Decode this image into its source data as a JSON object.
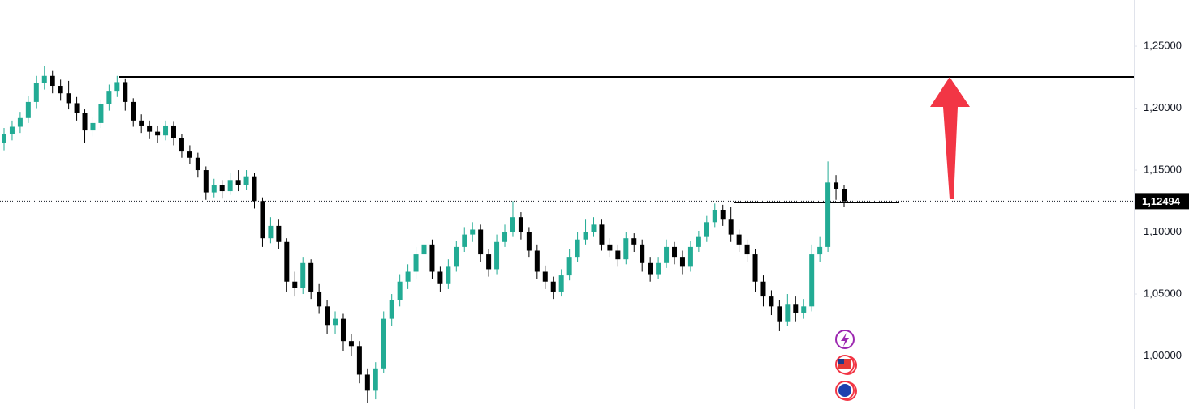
{
  "chart_data": {
    "type": "candlestick",
    "ylim": [
      0.9572,
      1.2873
    ],
    "yticks": [
      {
        "value": 1.0,
        "label": "1,00000"
      },
      {
        "value": 1.05,
        "label": "1,05000"
      },
      {
        "value": 1.1,
        "label": "1,10000"
      },
      {
        "value": 1.15,
        "label": "1,15000"
      },
      {
        "value": 1.2,
        "label": "1,20000"
      },
      {
        "value": 1.25,
        "label": "1,25000"
      }
    ],
    "last_price": {
      "value": 1.12494,
      "label": "1,12494"
    },
    "levels": [
      1.2252,
      1.1239
    ],
    "up_color": "#22ab94",
    "down_color": "#000000",
    "open": [
      1.172,
      1.179,
      1.185,
      1.192,
      1.205,
      1.22,
      1.226,
      1.218,
      1.212,
      1.204,
      1.196,
      1.182,
      1.188,
      1.203,
      1.214,
      1.221,
      1.205,
      1.19,
      1.186,
      1.181,
      1.178,
      1.186,
      1.176,
      1.165,
      1.16,
      1.15,
      1.132,
      1.138,
      1.133,
      1.142,
      1.138,
      1.145,
      1.125,
      1.095,
      1.105,
      1.092,
      1.06,
      1.055,
      1.075,
      1.052,
      1.04,
      1.025,
      1.03,
      1.012,
      1.008,
      0.985,
      0.972,
      0.99,
      1.03,
      1.045,
      1.06,
      1.068,
      1.082,
      1.09,
      1.068,
      1.058,
      1.072,
      1.088,
      1.098,
      1.102,
      1.082,
      1.07,
      1.092,
      1.1,
      1.112,
      1.1,
      1.085,
      1.068,
      1.06,
      1.052,
      1.065,
      1.08,
      1.094,
      1.1,
      1.106,
      1.09,
      1.085,
      1.078,
      1.095,
      1.09,
      1.075,
      1.066,
      1.075,
      1.088,
      1.08,
      1.072,
      1.088,
      1.096,
      1.108,
      1.118,
      1.11,
      1.098,
      1.09,
      1.082,
      1.06,
      1.048,
      1.04,
      1.028,
      1.042,
      1.035,
      1.04,
      1.082,
      1.088,
      1.14,
      1.135
    ],
    "high": [
      1.184,
      1.19,
      1.197,
      1.21,
      1.226,
      1.234,
      1.23,
      1.223,
      1.222,
      1.209,
      1.199,
      1.193,
      1.207,
      1.219,
      1.226,
      1.224,
      1.208,
      1.195,
      1.19,
      1.186,
      1.19,
      1.189,
      1.179,
      1.17,
      1.164,
      1.153,
      1.143,
      1.142,
      1.148,
      1.15,
      1.15,
      1.148,
      1.128,
      1.112,
      1.11,
      1.095,
      1.068,
      1.08,
      1.078,
      1.058,
      1.045,
      1.036,
      1.034,
      1.018,
      1.012,
      0.99,
      0.995,
      1.036,
      1.05,
      1.066,
      1.074,
      1.088,
      1.101,
      1.094,
      1.072,
      1.078,
      1.093,
      1.104,
      1.108,
      1.106,
      1.086,
      1.098,
      1.106,
      1.125,
      1.116,
      1.104,
      1.09,
      1.073,
      1.064,
      1.07,
      1.086,
      1.1,
      1.11,
      1.112,
      1.11,
      1.095,
      1.09,
      1.1,
      1.099,
      1.094,
      1.08,
      1.08,
      1.094,
      1.092,
      1.085,
      1.093,
      1.101,
      1.113,
      1.123,
      1.122,
      1.12,
      1.102,
      1.094,
      1.086,
      1.065,
      1.053,
      1.045,
      1.05,
      1.048,
      1.046,
      1.09,
      1.096,
      1.157,
      1.146,
      1.138
    ],
    "low": [
      1.166,
      1.174,
      1.18,
      1.188,
      1.2,
      1.215,
      1.212,
      1.206,
      1.199,
      1.19,
      1.172,
      1.177,
      1.184,
      1.198,
      1.209,
      1.198,
      1.185,
      1.18,
      1.175,
      1.172,
      1.174,
      1.17,
      1.16,
      1.155,
      1.144,
      1.126,
      1.128,
      1.127,
      1.13,
      1.133,
      1.134,
      1.119,
      1.088,
      1.091,
      1.086,
      1.052,
      1.048,
      1.05,
      1.046,
      1.034,
      1.018,
      1.018,
      1.004,
      1.0,
      0.978,
      0.962,
      0.965,
      0.986,
      1.024,
      1.04,
      1.054,
      1.062,
      1.076,
      1.062,
      1.052,
      1.054,
      1.068,
      1.084,
      1.092,
      1.076,
      1.064,
      1.066,
      1.088,
      1.096,
      1.094,
      1.08,
      1.062,
      1.054,
      1.046,
      1.048,
      1.061,
      1.076,
      1.09,
      1.096,
      1.085,
      1.08,
      1.072,
      1.074,
      1.084,
      1.068,
      1.06,
      1.062,
      1.071,
      1.074,
      1.066,
      1.068,
      1.084,
      1.092,
      1.104,
      1.105,
      1.092,
      1.084,
      1.076,
      1.052,
      1.04,
      1.033,
      1.02,
      1.024,
      1.028,
      1.03,
      1.036,
      1.076,
      1.084,
      1.126,
      1.12
    ],
    "close": [
      1.179,
      1.185,
      1.192,
      1.205,
      1.22,
      1.226,
      1.218,
      1.212,
      1.204,
      1.196,
      1.182,
      1.188,
      1.203,
      1.214,
      1.221,
      1.205,
      1.19,
      1.186,
      1.181,
      1.178,
      1.186,
      1.176,
      1.165,
      1.16,
      1.15,
      1.132,
      1.138,
      1.133,
      1.142,
      1.138,
      1.145,
      1.125,
      1.095,
      1.105,
      1.092,
      1.06,
      1.055,
      1.075,
      1.052,
      1.04,
      1.025,
      1.03,
      1.012,
      1.008,
      0.985,
      0.972,
      0.99,
      1.03,
      1.045,
      1.06,
      1.068,
      1.082,
      1.09,
      1.068,
      1.058,
      1.072,
      1.088,
      1.098,
      1.102,
      1.082,
      1.07,
      1.092,
      1.1,
      1.112,
      1.1,
      1.085,
      1.068,
      1.06,
      1.052,
      1.065,
      1.08,
      1.094,
      1.1,
      1.106,
      1.09,
      1.085,
      1.078,
      1.095,
      1.09,
      1.075,
      1.066,
      1.075,
      1.088,
      1.08,
      1.072,
      1.088,
      1.096,
      1.108,
      1.118,
      1.11,
      1.098,
      1.09,
      1.082,
      1.06,
      1.048,
      1.04,
      1.028,
      1.042,
      1.035,
      1.04,
      1.082,
      1.088,
      1.14,
      1.135,
      1.12494
    ]
  }
}
